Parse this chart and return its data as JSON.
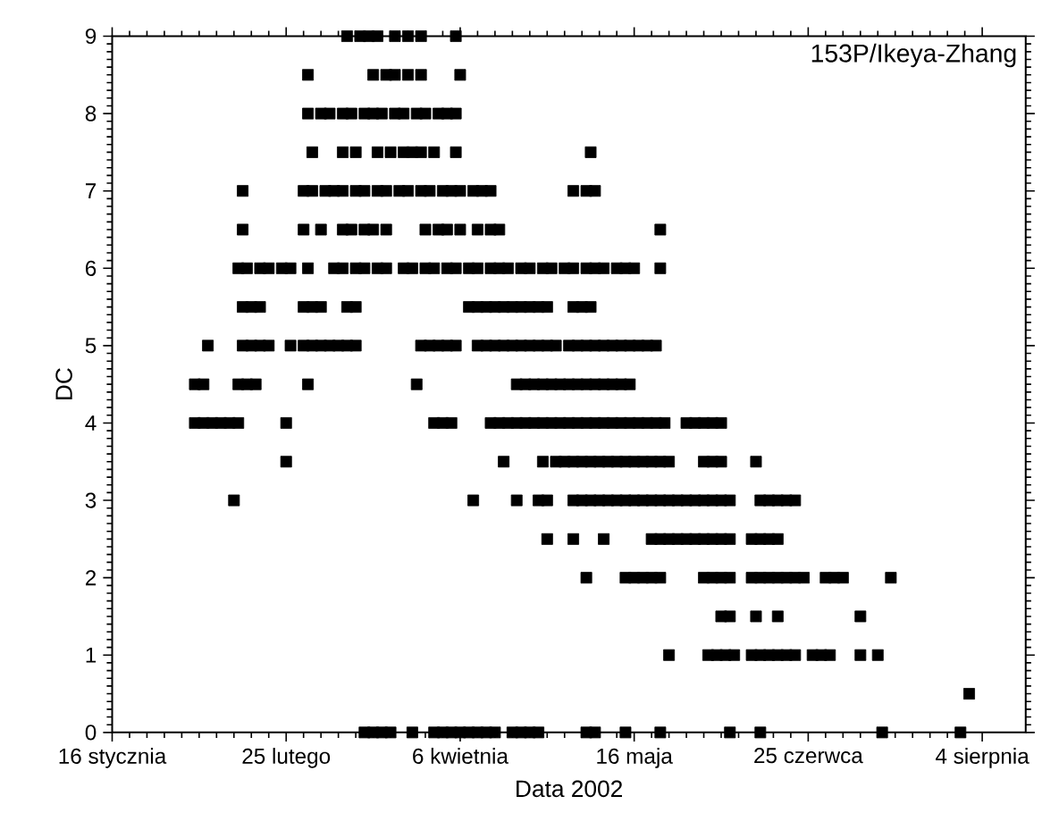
{
  "chart_data": {
    "type": "scatter",
    "xlabel": "Data 2002",
    "ylabel": "DC",
    "annotations": [
      "153P/Ikeya-Zhang"
    ],
    "marker": "square",
    "xlim": [
      "2002-01-16",
      "2002-08-14"
    ],
    "xticks": [
      {
        "value": "2002-01-16",
        "label": "16 stycznia"
      },
      {
        "value": "2002-02-25",
        "label": "25 lutego"
      },
      {
        "value": "2002-04-06",
        "label": "6 kwietnia"
      },
      {
        "value": "2002-05-16",
        "label": "16 maja"
      },
      {
        "value": "2002-06-25",
        "label": "25 czerwca"
      },
      {
        "value": "2002-08-04",
        "label": "4 sierpnia"
      }
    ],
    "ylim": [
      0,
      9
    ],
    "yticks": [
      0,
      1,
      2,
      3,
      4,
      5,
      6,
      7,
      8,
      9
    ],
    "series": [
      {
        "color": "#000000",
        "x": [
          "2002-03-11",
          "2002-03-14",
          "2002-03-16",
          "2002-03-18",
          "2002-03-22",
          "2002-03-25",
          "2002-03-28",
          "2002-04-05"
        ],
        "values": [
          9,
          9,
          9,
          9,
          9,
          9,
          9,
          9
        ]
      },
      {
        "color": "#000000",
        "x": [
          "2002-03-02",
          "2002-03-17",
          "2002-03-20",
          "2002-03-22",
          "2002-03-25",
          "2002-03-28",
          "2002-04-06"
        ],
        "values": [
          8.5,
          8.5,
          8.5,
          8.5,
          8.5,
          8.5,
          8.5
        ]
      },
      {
        "color": "#000000",
        "x": [
          "2002-03-02",
          "2002-03-05",
          "2002-03-07",
          "2002-03-10",
          "2002-03-12",
          "2002-03-15",
          "2002-03-17",
          "2002-03-19",
          "2002-03-22",
          "2002-03-24",
          "2002-03-27",
          "2002-03-29",
          "2002-04-01",
          "2002-04-03",
          "2002-04-05"
        ],
        "values": [
          8,
          8,
          8,
          8,
          8,
          8,
          8,
          8,
          8,
          8,
          8,
          8,
          8,
          8,
          8
        ]
      },
      {
        "color": "#000000",
        "x": [
          "2002-03-03",
          "2002-03-10",
          "2002-03-13",
          "2002-03-18",
          "2002-03-21",
          "2002-03-24",
          "2002-03-26",
          "2002-03-28",
          "2002-03-31",
          "2002-04-05",
          "2002-05-06"
        ],
        "values": [
          7.5,
          7.5,
          7.5,
          7.5,
          7.5,
          7.5,
          7.5,
          7.5,
          7.5,
          7.5,
          7.5
        ]
      },
      {
        "color": "#000000",
        "x": [
          "2002-02-15",
          "2002-03-01",
          "2002-03-03",
          "2002-03-06",
          "2002-03-08",
          "2002-03-10",
          "2002-03-13",
          "2002-03-15",
          "2002-03-18",
          "2002-03-20",
          "2002-03-23",
          "2002-03-25",
          "2002-03-28",
          "2002-03-30",
          "2002-04-02",
          "2002-04-04",
          "2002-04-06",
          "2002-04-09",
          "2002-04-11",
          "2002-04-13",
          "2002-05-02",
          "2002-05-05",
          "2002-05-07"
        ],
        "values": [
          7,
          7,
          7,
          7,
          7,
          7,
          7,
          7,
          7,
          7,
          7,
          7,
          7,
          7,
          7,
          7,
          7,
          7,
          7,
          7,
          7,
          7,
          7
        ]
      },
      {
        "color": "#000000",
        "x": [
          "2002-02-15",
          "2002-03-01",
          "2002-03-05",
          "2002-03-10",
          "2002-03-12",
          "2002-03-15",
          "2002-03-17",
          "2002-03-20",
          "2002-03-29",
          "2002-04-01",
          "2002-04-03",
          "2002-04-06",
          "2002-04-10",
          "2002-04-13",
          "2002-04-15",
          "2002-05-22"
        ],
        "values": [
          6.5,
          6.5,
          6.5,
          6.5,
          6.5,
          6.5,
          6.5,
          6.5,
          6.5,
          6.5,
          6.5,
          6.5,
          6.5,
          6.5,
          6.5,
          6.5
        ]
      },
      {
        "color": "#000000",
        "x": [
          "2002-02-14",
          "2002-02-16",
          "2002-02-19",
          "2002-02-21",
          "2002-02-24",
          "2002-02-26",
          "2002-03-02",
          "2002-03-08",
          "2002-03-10",
          "2002-03-13",
          "2002-03-15",
          "2002-03-18",
          "2002-03-20",
          "2002-03-24",
          "2002-03-26",
          "2002-03-29",
          "2002-03-31",
          "2002-04-03",
          "2002-04-05",
          "2002-04-08",
          "2002-04-10",
          "2002-04-13",
          "2002-04-15",
          "2002-04-17",
          "2002-04-20",
          "2002-04-22",
          "2002-04-25",
          "2002-04-27",
          "2002-04-30",
          "2002-05-02",
          "2002-05-05",
          "2002-05-07",
          "2002-05-09",
          "2002-05-12",
          "2002-05-14",
          "2002-05-16",
          "2002-05-22"
        ],
        "values": [
          6,
          6,
          6,
          6,
          6,
          6,
          6,
          6,
          6,
          6,
          6,
          6,
          6,
          6,
          6,
          6,
          6,
          6,
          6,
          6,
          6,
          6,
          6,
          6,
          6,
          6,
          6,
          6,
          6,
          6,
          6,
          6,
          6,
          6,
          6,
          6,
          6
        ]
      },
      {
        "color": "#000000",
        "x": [
          "2002-02-15",
          "2002-02-17",
          "2002-02-19",
          "2002-03-01",
          "2002-03-03",
          "2002-03-05",
          "2002-03-11",
          "2002-03-13",
          "2002-04-08",
          "2002-04-10",
          "2002-04-12",
          "2002-04-14",
          "2002-04-16",
          "2002-04-18",
          "2002-04-20",
          "2002-04-22",
          "2002-04-24",
          "2002-04-26",
          "2002-05-02",
          "2002-05-04",
          "2002-05-06"
        ],
        "values": [
          5.5,
          5.5,
          5.5,
          5.5,
          5.5,
          5.5,
          5.5,
          5.5,
          5.5,
          5.5,
          5.5,
          5.5,
          5.5,
          5.5,
          5.5,
          5.5,
          5.5,
          5.5,
          5.5,
          5.5,
          5.5
        ]
      },
      {
        "color": "#000000",
        "x": [
          "2002-02-07",
          "2002-02-15",
          "2002-02-17",
          "2002-02-19",
          "2002-02-21",
          "2002-02-26",
          "2002-03-01",
          "2002-03-03",
          "2002-03-05",
          "2002-03-07",
          "2002-03-09",
          "2002-03-11",
          "2002-03-13",
          "2002-03-28",
          "2002-03-30",
          "2002-04-01",
          "2002-04-03",
          "2002-04-05",
          "2002-04-10",
          "2002-04-12",
          "2002-04-14",
          "2002-04-16",
          "2002-04-18",
          "2002-04-20",
          "2002-04-22",
          "2002-04-24",
          "2002-04-26",
          "2002-04-28",
          "2002-05-01",
          "2002-05-03",
          "2002-05-05",
          "2002-05-07",
          "2002-05-09",
          "2002-05-11",
          "2002-05-13",
          "2002-05-15",
          "2002-05-17",
          "2002-05-19",
          "2002-05-21"
        ],
        "values": [
          5,
          5,
          5,
          5,
          5,
          5,
          5,
          5,
          5,
          5,
          5,
          5,
          5,
          5,
          5,
          5,
          5,
          5,
          5,
          5,
          5,
          5,
          5,
          5,
          5,
          5,
          5,
          5,
          5,
          5,
          5,
          5,
          5,
          5,
          5,
          5,
          5,
          5,
          5
        ]
      },
      {
        "color": "#000000",
        "x": [
          "2002-02-04",
          "2002-02-06",
          "2002-02-14",
          "2002-02-16",
          "2002-02-18",
          "2002-03-02",
          "2002-03-27",
          "2002-04-19",
          "2002-04-21",
          "2002-04-23",
          "2002-04-25",
          "2002-04-27",
          "2002-04-29",
          "2002-05-01",
          "2002-05-03",
          "2002-05-05",
          "2002-05-07",
          "2002-05-09",
          "2002-05-11",
          "2002-05-13",
          "2002-05-15"
        ],
        "values": [
          4.5,
          4.5,
          4.5,
          4.5,
          4.5,
          4.5,
          4.5,
          4.5,
          4.5,
          4.5,
          4.5,
          4.5,
          4.5,
          4.5,
          4.5,
          4.5,
          4.5,
          4.5,
          4.5,
          4.5,
          4.5
        ]
      },
      {
        "color": "#000000",
        "x": [
          "2002-02-04",
          "2002-02-06",
          "2002-02-08",
          "2002-02-10",
          "2002-02-12",
          "2002-02-14",
          "2002-02-25",
          "2002-03-31",
          "2002-04-02",
          "2002-04-04",
          "2002-04-13",
          "2002-04-15",
          "2002-04-17",
          "2002-04-19",
          "2002-04-21",
          "2002-04-23",
          "2002-04-25",
          "2002-04-27",
          "2002-04-29",
          "2002-05-01",
          "2002-05-03",
          "2002-05-05",
          "2002-05-07",
          "2002-05-09",
          "2002-05-11",
          "2002-05-13",
          "2002-05-15",
          "2002-05-17",
          "2002-05-19",
          "2002-05-21",
          "2002-05-23",
          "2002-05-28",
          "2002-05-30",
          "2002-06-01",
          "2002-06-03",
          "2002-06-05"
        ],
        "values": [
          4,
          4,
          4,
          4,
          4,
          4,
          4,
          4,
          4,
          4,
          4,
          4,
          4,
          4,
          4,
          4,
          4,
          4,
          4,
          4,
          4,
          4,
          4,
          4,
          4,
          4,
          4,
          4,
          4,
          4,
          4,
          4,
          4,
          4,
          4,
          4
        ]
      },
      {
        "color": "#000000",
        "x": [
          "2002-02-25",
          "2002-04-16",
          "2002-04-25",
          "2002-04-28",
          "2002-04-30",
          "2002-05-02",
          "2002-05-04",
          "2002-05-06",
          "2002-05-08",
          "2002-05-10",
          "2002-05-12",
          "2002-05-14",
          "2002-05-16",
          "2002-05-18",
          "2002-05-20",
          "2002-05-22",
          "2002-05-24",
          "2002-06-01",
          "2002-06-03",
          "2002-06-05",
          "2002-06-13"
        ],
        "values": [
          3.5,
          3.5,
          3.5,
          3.5,
          3.5,
          3.5,
          3.5,
          3.5,
          3.5,
          3.5,
          3.5,
          3.5,
          3.5,
          3.5,
          3.5,
          3.5,
          3.5,
          3.5,
          3.5,
          3.5,
          3.5
        ]
      },
      {
        "color": "#000000",
        "x": [
          "2002-02-13",
          "2002-04-09",
          "2002-04-19",
          "2002-04-24",
          "2002-04-26",
          "2002-05-02",
          "2002-05-04",
          "2002-05-06",
          "2002-05-08",
          "2002-05-10",
          "2002-05-12",
          "2002-05-14",
          "2002-05-16",
          "2002-05-18",
          "2002-05-20",
          "2002-05-22",
          "2002-05-24",
          "2002-05-26",
          "2002-05-28",
          "2002-05-30",
          "2002-06-01",
          "2002-06-03",
          "2002-06-05",
          "2002-06-07",
          "2002-06-14",
          "2002-06-16",
          "2002-06-18",
          "2002-06-20",
          "2002-06-22"
        ],
        "values": [
          3,
          3,
          3,
          3,
          3,
          3,
          3,
          3,
          3,
          3,
          3,
          3,
          3,
          3,
          3,
          3,
          3,
          3,
          3,
          3,
          3,
          3,
          3,
          3,
          3,
          3,
          3,
          3,
          3
        ]
      },
      {
        "color": "#000000",
        "x": [
          "2002-04-26",
          "2002-05-02",
          "2002-05-09",
          "2002-05-20",
          "2002-05-22",
          "2002-05-24",
          "2002-05-26",
          "2002-05-28",
          "2002-05-30",
          "2002-06-01",
          "2002-06-03",
          "2002-06-05",
          "2002-06-07",
          "2002-06-12",
          "2002-06-14",
          "2002-06-16",
          "2002-06-18"
        ],
        "values": [
          2.5,
          2.5,
          2.5,
          2.5,
          2.5,
          2.5,
          2.5,
          2.5,
          2.5,
          2.5,
          2.5,
          2.5,
          2.5,
          2.5,
          2.5,
          2.5,
          2.5
        ]
      },
      {
        "color": "#000000",
        "x": [
          "2002-05-05",
          "2002-05-14",
          "2002-05-16",
          "2002-05-18",
          "2002-05-20",
          "2002-05-22",
          "2002-06-01",
          "2002-06-03",
          "2002-06-05",
          "2002-06-07",
          "2002-06-12",
          "2002-06-14",
          "2002-06-16",
          "2002-06-18",
          "2002-06-20",
          "2002-06-22",
          "2002-06-24",
          "2002-06-29",
          "2002-07-01",
          "2002-07-03",
          "2002-07-14"
        ],
        "values": [
          2,
          2,
          2,
          2,
          2,
          2,
          2,
          2,
          2,
          2,
          2,
          2,
          2,
          2,
          2,
          2,
          2,
          2,
          2,
          2,
          2
        ]
      },
      {
        "color": "#000000",
        "x": [
          "2002-06-05",
          "2002-06-07",
          "2002-06-13",
          "2002-06-18",
          "2002-07-07"
        ],
        "values": [
          1.5,
          1.5,
          1.5,
          1.5,
          1.5
        ]
      },
      {
        "color": "#000000",
        "x": [
          "2002-05-24",
          "2002-06-02",
          "2002-06-04",
          "2002-06-06",
          "2002-06-08",
          "2002-06-12",
          "2002-06-14",
          "2002-06-16",
          "2002-06-18",
          "2002-06-20",
          "2002-06-22",
          "2002-06-26",
          "2002-06-28",
          "2002-06-30",
          "2002-07-07",
          "2002-07-11"
        ],
        "values": [
          1,
          1,
          1,
          1,
          1,
          1,
          1,
          1,
          1,
          1,
          1,
          1,
          1,
          1,
          1,
          1
        ]
      },
      {
        "color": "#000000",
        "x": [
          "2002-08-01"
        ],
        "values": [
          0.5
        ]
      },
      {
        "color": "#000000",
        "x": [
          "2002-03-15",
          "2002-03-17",
          "2002-03-19",
          "2002-03-21",
          "2002-03-26",
          "2002-03-31",
          "2002-04-02",
          "2002-04-04",
          "2002-04-06",
          "2002-04-08",
          "2002-04-10",
          "2002-04-12",
          "2002-04-14",
          "2002-04-18",
          "2002-04-20",
          "2002-04-22",
          "2002-04-24",
          "2002-05-05",
          "2002-05-07",
          "2002-05-14",
          "2002-05-22",
          "2002-06-07",
          "2002-06-14",
          "2002-07-12",
          "2002-07-30"
        ],
        "values": [
          0,
          0,
          0,
          0,
          0,
          0,
          0,
          0,
          0,
          0,
          0,
          0,
          0,
          0,
          0,
          0,
          0,
          0,
          0,
          0,
          0,
          0,
          0,
          0,
          0
        ]
      }
    ]
  }
}
